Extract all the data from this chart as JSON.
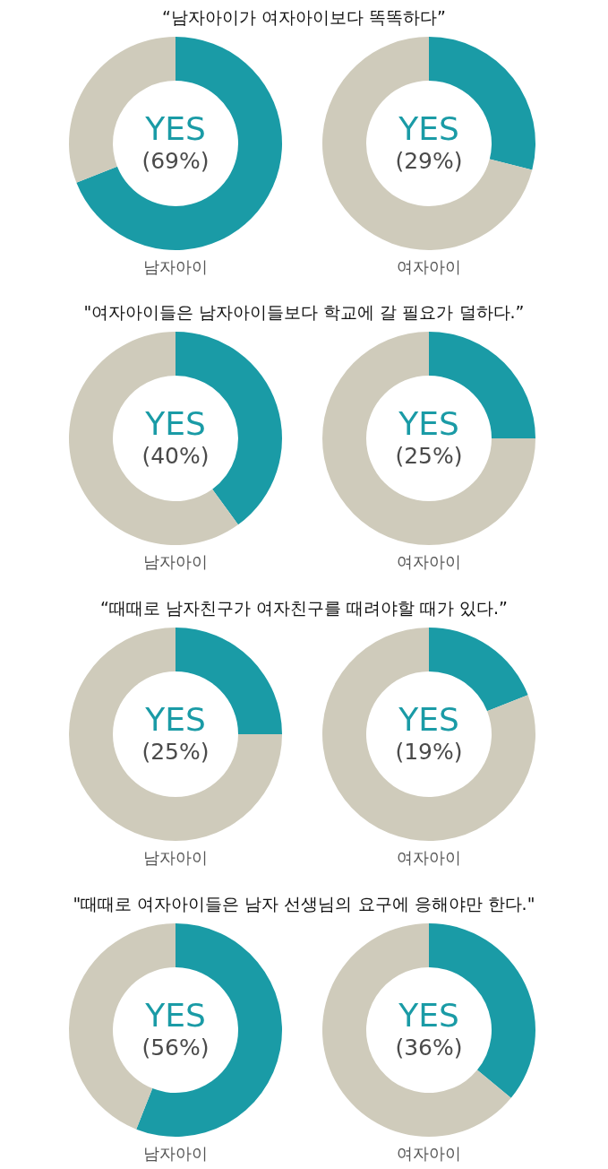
{
  "chart_data": [
    {
      "type": "donut",
      "title": "“남자아이가 여자아이보다 똑똑하다”",
      "categories": [
        "YES",
        null
      ],
      "values": [
        69,
        31
      ],
      "colors": [
        "#1a9ba6",
        "#cfcbbb"
      ],
      "value_labels": [
        "(69%)",
        null
      ],
      "xlabel": "남자아이"
    },
    {
      "type": "donut",
      "categories": [
        "YES",
        null
      ],
      "values": [
        29,
        71
      ],
      "colors": [
        "#1a9ba6",
        "#cfcbbb"
      ],
      "value_labels": [
        "(29%)",
        null
      ],
      "xlabel": "여자아이"
    },
    {
      "type": "donut",
      "title": "\"여자아이들은 남자아이들보다 학교에 갈 필요가 덜하다.”",
      "categories": [
        "YES",
        null
      ],
      "values": [
        40,
        60
      ],
      "colors": [
        "#1a9ba6",
        "#cfcbbb"
      ],
      "value_labels": [
        "(40%)",
        null
      ],
      "xlabel": "남자아이"
    },
    {
      "type": "donut",
      "categories": [
        "YES",
        null
      ],
      "values": [
        25,
        75
      ],
      "colors": [
        "#1a9ba6",
        "#cfcbbb"
      ],
      "value_labels": [
        "(25%)",
        null
      ],
      "xlabel": "여자아이"
    },
    {
      "type": "donut",
      "title": "“때때로 남자친구가 여자친구를 때려야할 때가 있다.”",
      "categories": [
        "YES",
        null
      ],
      "values": [
        25,
        75
      ],
      "colors": [
        "#1a9ba6",
        "#cfcbbb"
      ],
      "value_labels": [
        "(25%)",
        null
      ],
      "xlabel": "남자아이"
    },
    {
      "type": "donut",
      "categories": [
        "YES",
        null
      ],
      "values": [
        19,
        81
      ],
      "colors": [
        "#1a9ba6",
        "#cfcbbb"
      ],
      "value_labels": [
        "(19%)",
        null
      ],
      "xlabel": "여자아이"
    },
    {
      "type": "donut",
      "title": "\"때때로 여자아이들은 남자 선생님의 요구에 응해야만 한다.\"",
      "categories": [
        "YES",
        null
      ],
      "values": [
        56,
        44
      ],
      "colors": [
        "#1a9ba6",
        "#cfcbbb"
      ],
      "value_labels": [
        "(56%)",
        null
      ],
      "xlabel": "남자아이"
    },
    {
      "type": "donut",
      "categories": [
        "YES",
        null
      ],
      "values": [
        36,
        64
      ],
      "colors": [
        "#1a9ba6",
        "#cfcbbb"
      ],
      "value_labels": [
        "(36%)",
        null
      ],
      "xlabel": "여자아이"
    }
  ]
}
